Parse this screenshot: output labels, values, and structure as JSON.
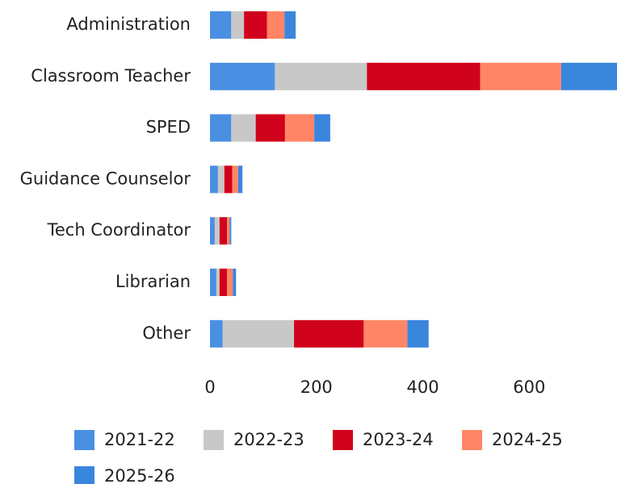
{
  "chart_data": {
    "type": "stacked_barh",
    "categories": [
      "Administration",
      "Classroom Teacher",
      "SPED",
      "Guidance Counselor",
      "Tech Coordinator",
      "Librarian",
      "Other"
    ],
    "series": [
      {
        "name": "2021-22",
        "color": "#4a90e2",
        "values": [
          40,
          122,
          40,
          15,
          9,
          12,
          24
        ]
      },
      {
        "name": "2022-23",
        "color": "#c8c8c8",
        "values": [
          24,
          173,
          46,
          12,
          9,
          6,
          134
        ]
      },
      {
        "name": "2023-24",
        "color": "#d0021b",
        "values": [
          43,
          213,
          55,
          15,
          14,
          14,
          131
        ]
      },
      {
        "name": "2024-25",
        "color": "#ff8566",
        "values": [
          33,
          152,
          55,
          11,
          5,
          11,
          82
        ]
      },
      {
        "name": "2025-26",
        "color": "#3a86dd",
        "values": [
          21,
          106,
          30,
          8,
          3,
          6,
          40
        ]
      }
    ],
    "xlim": [
      0,
      765
    ],
    "xticks": [
      0,
      200,
      400,
      600
    ],
    "grid": false
  }
}
